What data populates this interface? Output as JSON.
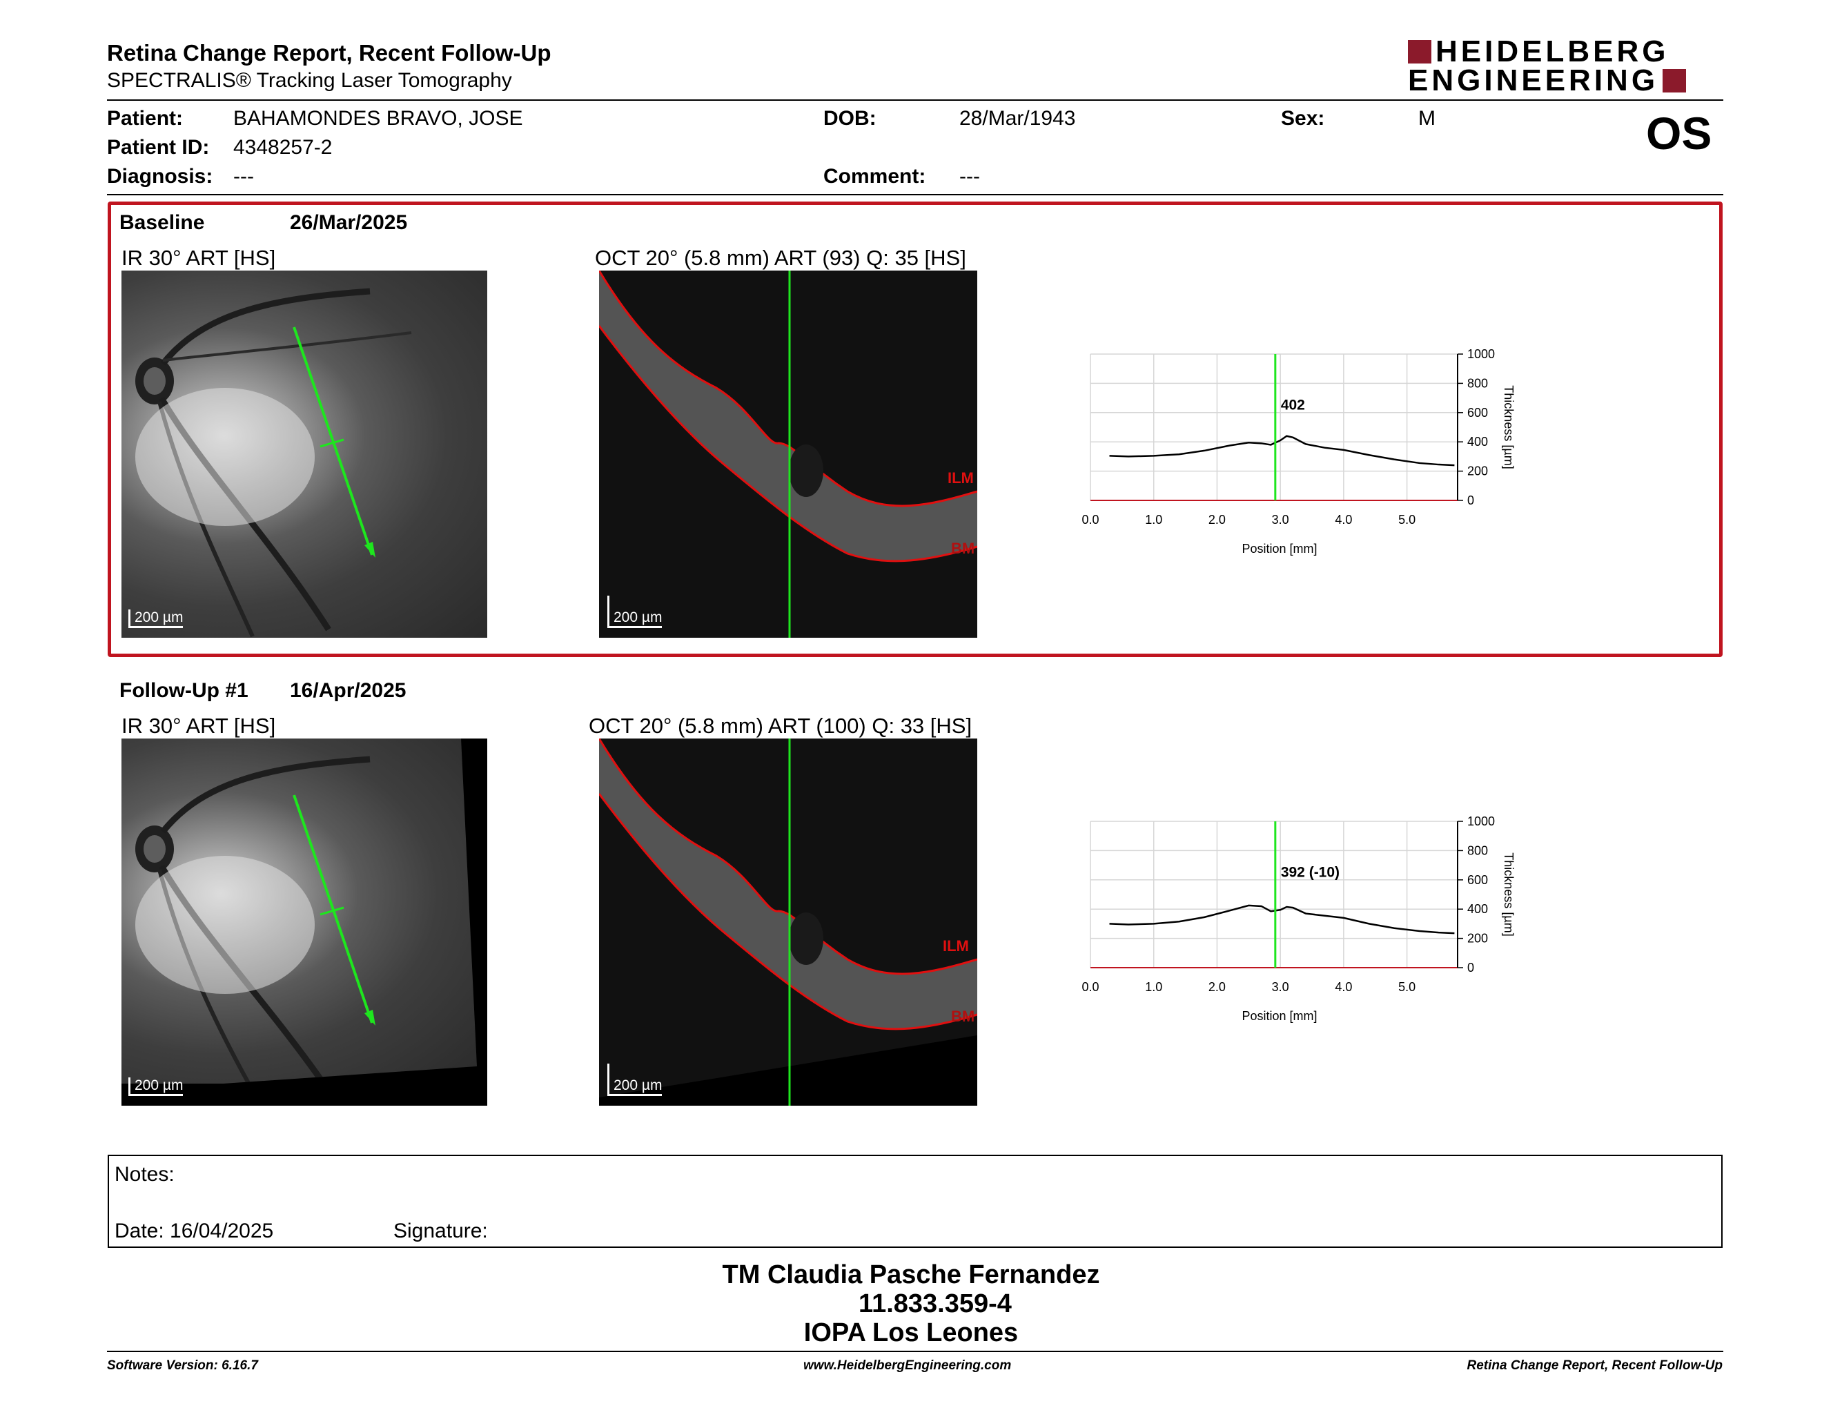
{
  "header": {
    "title": "Retina Change Report, Recent Follow-Up",
    "subtitle": "SPECTRALIS® Tracking Laser Tomography",
    "logo_line1": "HEIDELBERG",
    "logo_line2": "ENGINEERING",
    "eye": "OS",
    "brand_color": "#8b1a2b"
  },
  "patient": {
    "patient_label": "Patient:",
    "patient_value": "BAHAMONDES BRAVO, JOSE",
    "dob_label": "DOB:",
    "dob_value": "28/Mar/1943",
    "sex_label": "Sex:",
    "sex_value": "M",
    "id_label": "Patient ID:",
    "id_value": "4348257-2",
    "diagnosis_label": "Diagnosis:",
    "diagnosis_value": "---",
    "comment_label": "Comment:",
    "comment_value": "---"
  },
  "baseline": {
    "label": "Baseline",
    "date": "26/Mar/2025",
    "ir_title": "IR 30° ART [HS]",
    "oct_title": "OCT 20° (5.8 mm) ART (93) Q: 35 [HS]",
    "scale_ir": "200 µm",
    "scale_oct": "200 µm",
    "ilm": "ILM",
    "bm": "BM",
    "highlight_color": "#c0141f"
  },
  "followup": {
    "label": "Follow-Up #1",
    "date": "16/Apr/2025",
    "ir_title": "IR 30° ART [HS]",
    "oct_title": "OCT 20° (5.8 mm) ART (100) Q: 33 [HS]",
    "scale_ir": "200 µm",
    "scale_oct": "200 µm",
    "ilm": "ILM",
    "bm": "BM"
  },
  "chart_data": [
    {
      "type": "line",
      "xlabel": "Position [mm]",
      "ylabel": "Thickness [µm]",
      "xlim": [
        0,
        5.8
      ],
      "ylim": [
        0,
        1000
      ],
      "x_ticks": [
        "0.0",
        "1.0",
        "2.0",
        "3.0",
        "4.0",
        "5.0"
      ],
      "y_ticks": [
        "0",
        "200",
        "400",
        "600",
        "800",
        "1000"
      ],
      "marker_x": 2.92,
      "marker_label": "402",
      "grid": true,
      "series": [
        {
          "x": [
            0.3,
            0.6,
            1.0,
            1.4,
            1.8,
            2.2,
            2.5,
            2.7,
            2.85,
            3.0,
            3.1,
            3.2,
            3.4,
            3.7,
            4.0,
            4.4,
            4.8,
            5.2,
            5.5,
            5.75
          ],
          "values": [
            305,
            300,
            305,
            315,
            340,
            375,
            395,
            390,
            380,
            410,
            440,
            430,
            385,
            360,
            345,
            310,
            280,
            255,
            245,
            240
          ]
        }
      ]
    },
    {
      "type": "line",
      "xlabel": "Position [mm]",
      "ylabel": "Thickness [µm]",
      "xlim": [
        0,
        5.8
      ],
      "ylim": [
        0,
        1000
      ],
      "x_ticks": [
        "0.0",
        "1.0",
        "2.0",
        "3.0",
        "4.0",
        "5.0"
      ],
      "y_ticks": [
        "0",
        "200",
        "400",
        "600",
        "800",
        "1000"
      ],
      "marker_x": 2.92,
      "marker_label": "392 (-10)",
      "grid": true,
      "series": [
        {
          "x": [
            0.3,
            0.6,
            1.0,
            1.4,
            1.8,
            2.2,
            2.5,
            2.7,
            2.85,
            3.0,
            3.1,
            3.2,
            3.4,
            3.7,
            4.0,
            4.4,
            4.8,
            5.2,
            5.5,
            5.75
          ],
          "values": [
            300,
            295,
            300,
            315,
            345,
            390,
            425,
            420,
            385,
            395,
            415,
            410,
            370,
            355,
            340,
            300,
            270,
            250,
            240,
            235
          ]
        }
      ]
    }
  ],
  "notes": {
    "label": "Notes:",
    "date_label": "Date: 16/04/2025",
    "signature_label": "Signature:"
  },
  "signer": {
    "name": "TM Claudia Pasche Fernandez",
    "id": "11.833.359-4",
    "institution": "IOPA Los Leones"
  },
  "footer": {
    "software": "Software Version: 6.16.7",
    "website": "www.HeidelbergEngineering.com",
    "report": "Retina Change Report, Recent Follow-Up"
  }
}
